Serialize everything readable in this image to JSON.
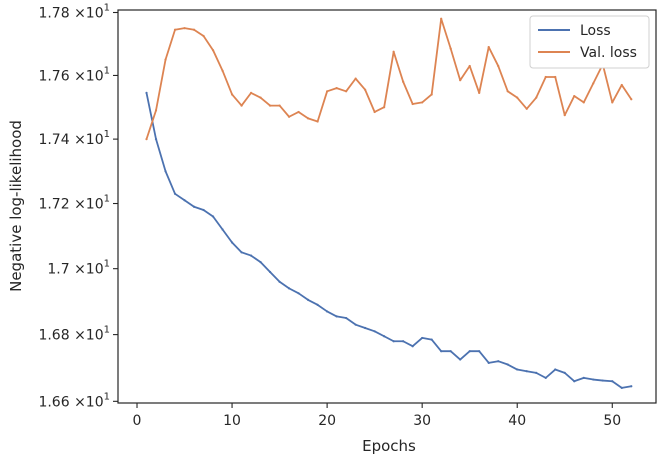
{
  "chart_data": {
    "type": "line",
    "xlabel": "Epochs",
    "ylabel": "Negative log-likelihood",
    "xlim": [
      -2.0,
      54.6
    ],
    "ylim": [
      16.595,
      17.808
    ],
    "y_scale": "log",
    "grid": false,
    "legend_position": "top-right",
    "x_ticks": [
      0,
      10,
      20,
      30,
      40,
      50
    ],
    "x_tick_labels": [
      "0",
      "10",
      "20",
      "30",
      "40",
      "50"
    ],
    "y_ticks": [
      16.6,
      16.8,
      17.0,
      17.2,
      17.4,
      17.6,
      17.8
    ],
    "y_tick_labels": [
      {
        "mantissa": "1.66",
        "exp": "1"
      },
      {
        "mantissa": "1.68",
        "exp": "1"
      },
      {
        "mantissa": "1.7",
        "exp": "1"
      },
      {
        "mantissa": "1.72",
        "exp": "1"
      },
      {
        "mantissa": "1.74",
        "exp": "1"
      },
      {
        "mantissa": "1.76",
        "exp": "1"
      },
      {
        "mantissa": "1.78",
        "exp": "1"
      }
    ],
    "y_tick_label_joiner": "×10",
    "series": [
      {
        "name": "Loss",
        "color": "#4c72b0",
        "x": [
          1,
          2,
          3,
          4,
          5,
          6,
          7,
          8,
          9,
          10,
          11,
          12,
          13,
          14,
          15,
          16,
          17,
          18,
          19,
          20,
          21,
          22,
          23,
          24,
          25,
          26,
          27,
          28,
          29,
          30,
          31,
          32,
          33,
          34,
          35,
          36,
          37,
          38,
          39,
          40,
          41,
          42,
          43,
          44,
          45,
          46,
          47,
          48,
          49,
          50,
          51,
          52
        ],
        "values": [
          17.545,
          17.4,
          17.3,
          17.23,
          17.21,
          17.19,
          17.18,
          17.16,
          17.12,
          17.08,
          17.05,
          17.04,
          17.02,
          16.99,
          16.96,
          16.94,
          16.925,
          16.905,
          16.89,
          16.87,
          16.855,
          16.85,
          16.83,
          16.82,
          16.81,
          16.795,
          16.78,
          16.78,
          16.765,
          16.79,
          16.785,
          16.75,
          16.75,
          16.725,
          16.75,
          16.75,
          16.715,
          16.72,
          16.71,
          16.695,
          16.69,
          16.685,
          16.67,
          16.695,
          16.685,
          16.66,
          16.67,
          16.665,
          16.662,
          16.66,
          16.64,
          16.645
        ]
      },
      {
        "name": "Val. loss",
        "color": "#dd8452",
        "x": [
          1,
          2,
          3,
          4,
          5,
          6,
          7,
          8,
          9,
          10,
          11,
          12,
          13,
          14,
          15,
          16,
          17,
          18,
          19,
          20,
          21,
          22,
          23,
          24,
          25,
          26,
          27,
          28,
          29,
          30,
          31,
          32,
          33,
          34,
          35,
          36,
          37,
          38,
          39,
          40,
          41,
          42,
          43,
          44,
          45,
          46,
          47,
          48,
          49,
          50,
          51,
          52
        ],
        "values": [
          17.4,
          17.49,
          17.65,
          17.745,
          17.75,
          17.745,
          17.725,
          17.68,
          17.615,
          17.54,
          17.505,
          17.545,
          17.53,
          17.505,
          17.505,
          17.47,
          17.485,
          17.465,
          17.455,
          17.55,
          17.56,
          17.55,
          17.59,
          17.555,
          17.485,
          17.5,
          17.675,
          17.58,
          17.51,
          17.515,
          17.54,
          17.78,
          17.685,
          17.585,
          17.63,
          17.545,
          17.69,
          17.63,
          17.55,
          17.53,
          17.495,
          17.53,
          17.595,
          17.595,
          17.475,
          17.535,
          17.515,
          17.575,
          17.635,
          17.515,
          17.57,
          17.525
        ]
      }
    ]
  }
}
